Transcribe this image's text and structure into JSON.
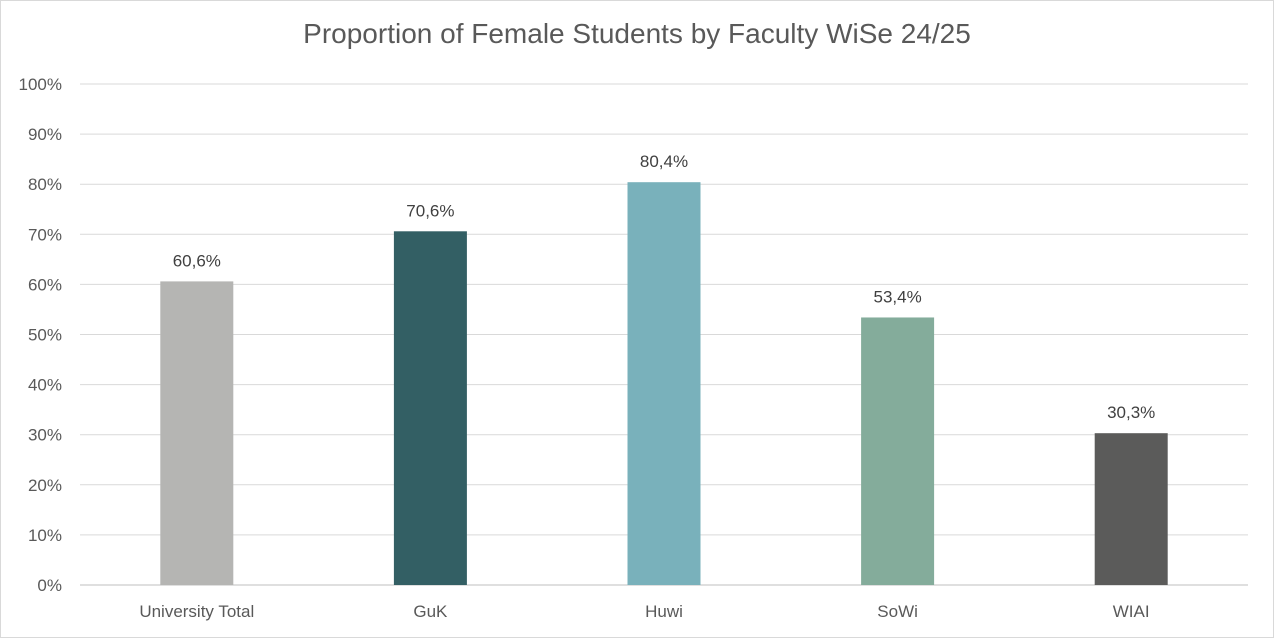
{
  "chart_data": {
    "type": "bar",
    "title": "Proportion of Female Students by Faculty WiSe 24/25",
    "categories": [
      "University Total",
      "GuK",
      "Huwi",
      "SoWi",
      "WIAI"
    ],
    "values": [
      60.6,
      70.6,
      80.4,
      53.4,
      30.3
    ],
    "data_labels": [
      "60,6%",
      "70,6%",
      "80,4%",
      "53,4%",
      "30,3%"
    ],
    "bar_colors": [
      "#b5b5b3",
      "#335f64",
      "#79b1bb",
      "#84ac9b",
      "#5b5b5a"
    ],
    "ylim": [
      0,
      100
    ],
    "yticks": [
      0,
      10,
      20,
      30,
      40,
      50,
      60,
      70,
      80,
      90,
      100
    ],
    "ytick_labels": [
      "0%",
      "10%",
      "20%",
      "30%",
      "40%",
      "50%",
      "60%",
      "70%",
      "80%",
      "90%",
      "100%"
    ],
    "xlabel": "",
    "ylabel": "",
    "grid": true,
    "legend": "none"
  }
}
